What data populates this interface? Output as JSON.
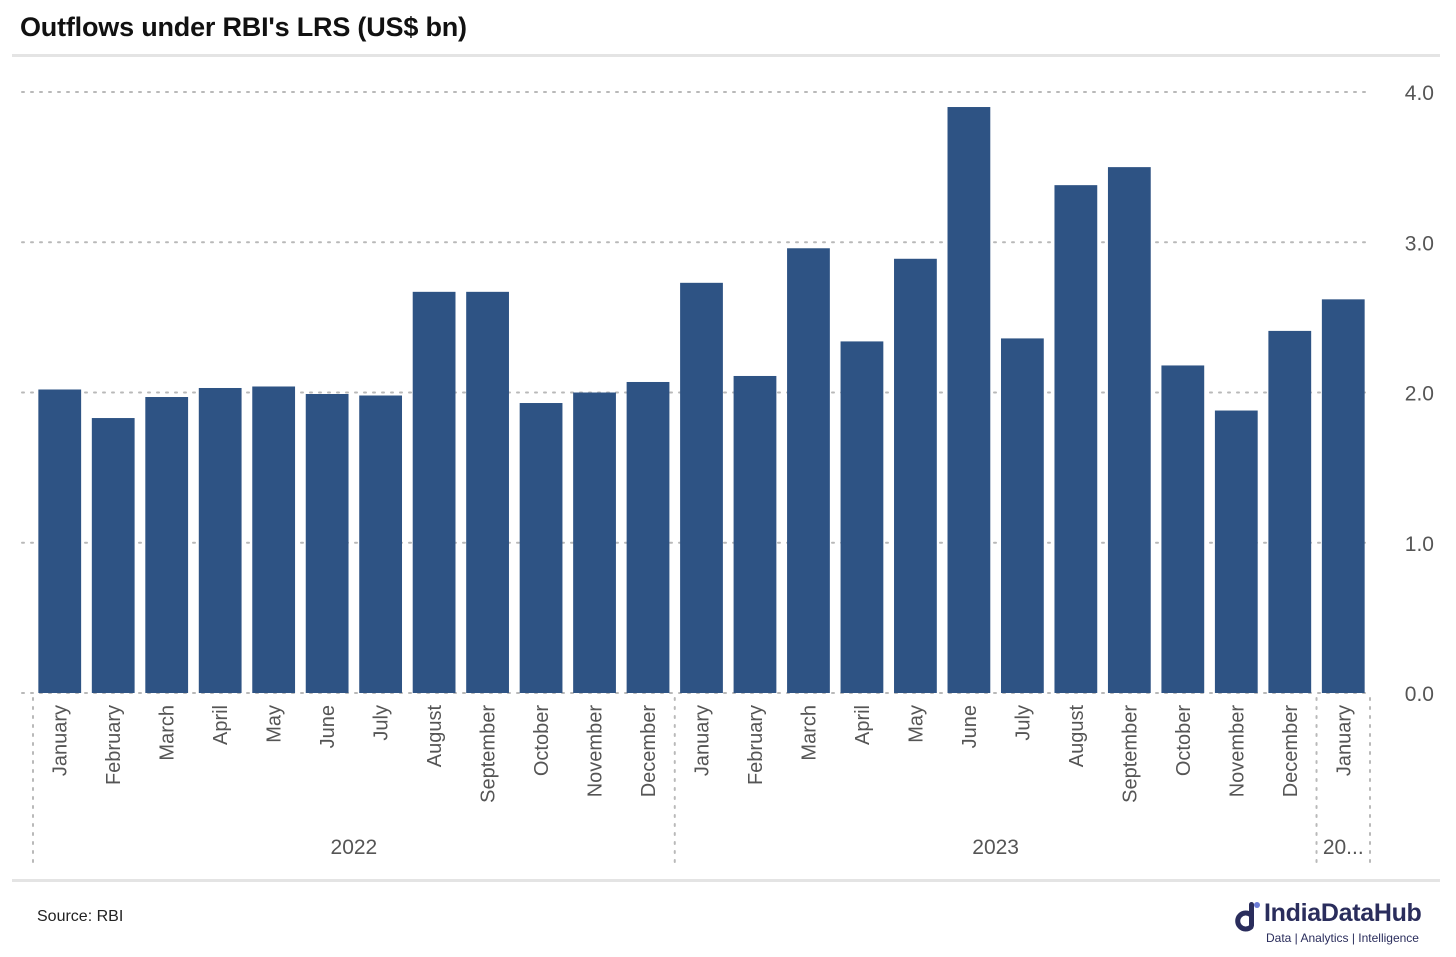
{
  "header": {
    "title": "Outflows under RBI's LRS (US$ bn)"
  },
  "footer": {
    "source": "Source: RBI",
    "brand_name": "IndiaDataHub",
    "brand_tagline": "Data | Analytics | Intelligence"
  },
  "colors": {
    "bar": "#2e5384",
    "grid": "#b9b9b9",
    "axis_text": "#555555",
    "brand": "#2a2d5c"
  },
  "chart_data": {
    "type": "bar",
    "title": "Outflows under RBI's LRS (US$ bn)",
    "xlabel": "",
    "ylabel": "",
    "ylim": [
      0,
      4
    ],
    "yticks": [
      0,
      1,
      2,
      3,
      4
    ],
    "ytick_labels": [
      "0.0",
      "1.0",
      "2.0",
      "3.0",
      "4.0"
    ],
    "y_axis_side": "right",
    "grid": true,
    "categories": [
      "January",
      "February",
      "March",
      "April",
      "May",
      "June",
      "July",
      "August",
      "September",
      "October",
      "November",
      "December",
      "January",
      "February",
      "March",
      "April",
      "May",
      "June",
      "July",
      "August",
      "September",
      "October",
      "November",
      "December",
      "January"
    ],
    "values": [
      2.02,
      1.83,
      1.97,
      2.03,
      2.04,
      1.99,
      1.98,
      2.67,
      2.67,
      1.93,
      2.0,
      2.07,
      2.73,
      2.11,
      2.96,
      2.34,
      2.89,
      3.9,
      2.36,
      3.38,
      3.5,
      2.18,
      1.88,
      2.41,
      2.62
    ],
    "groups": [
      {
        "label": "2022",
        "count": 12
      },
      {
        "label": "2023",
        "count": 12
      },
      {
        "label": "20...",
        "count": 1
      }
    ]
  }
}
